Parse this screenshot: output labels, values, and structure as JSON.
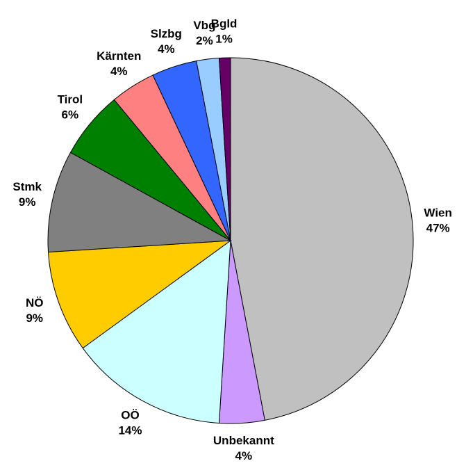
{
  "chart_data": {
    "type": "pie",
    "categories": [
      "Wien",
      "Unbekannt",
      "OÖ",
      "NÖ",
      "Stmk",
      "Tirol",
      "Kärnten",
      "Slzbg",
      "Vbg",
      "Bgld"
    ],
    "values": [
      47,
      4,
      14,
      9,
      9,
      6,
      4,
      4,
      2,
      1
    ],
    "value_labels": [
      "47%",
      "4%",
      "14%",
      "9%",
      "9%",
      "6%",
      "4%",
      "4%",
      "2%",
      "1%"
    ],
    "colors": [
      "#c0c0c0",
      "#cc99ff",
      "#ccffff",
      "#ffcc00",
      "#808080",
      "#008000",
      "#ff8080",
      "#3366ff",
      "#99ccff",
      "#660066"
    ]
  }
}
